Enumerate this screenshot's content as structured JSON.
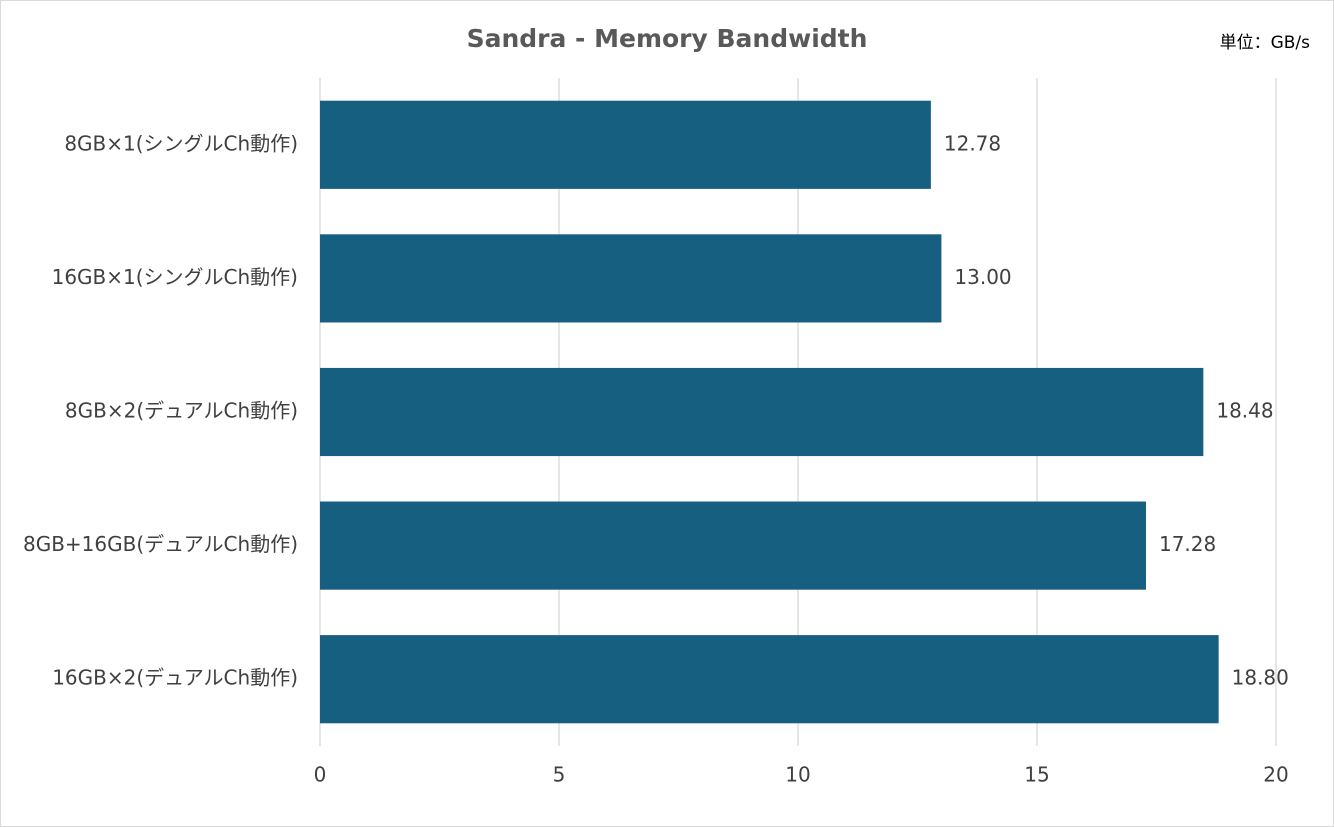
{
  "chart_data": {
    "type": "bar",
    "orientation": "horizontal",
    "title": "Sandra - Memory Bandwidth",
    "unit": "単位：GB/s",
    "categories": [
      "8GB×1(シングルCh動作)",
      "16GB×1(シングルCh動作)",
      "8GB×2(デュアルCh動作)",
      "8GB+16GB(デュアルCh動作)",
      "16GB×2(デュアルCh動作)"
    ],
    "values": [
      12.78,
      13.0,
      18.48,
      17.28,
      18.8
    ],
    "value_labels": [
      "12.78",
      "13.00",
      "18.48",
      "17.28",
      "18.80"
    ],
    "color": "#175f81",
    "xlim": [
      0,
      20
    ],
    "xticks": [
      0,
      5,
      10,
      15,
      20
    ],
    "grid": true
  }
}
